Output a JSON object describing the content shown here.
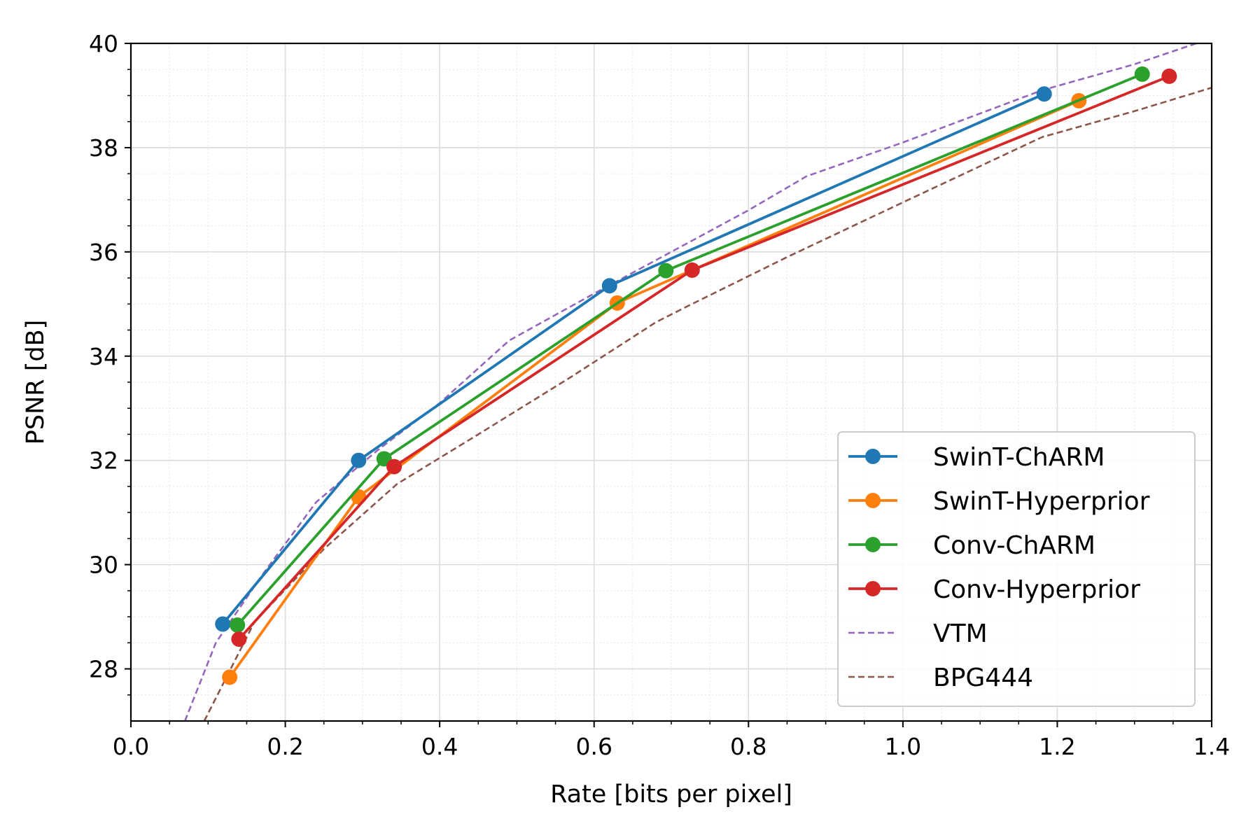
{
  "chart_data": {
    "type": "line",
    "title": "",
    "xlabel": "Rate [bits per pixel]",
    "ylabel": "PSNR [dB]",
    "xlim": [
      0.0,
      1.4
    ],
    "ylim": [
      27,
      40
    ],
    "xticks": [
      "0.0",
      "0.2",
      "0.4",
      "0.6",
      "0.8",
      "1.0",
      "1.2",
      "1.4"
    ],
    "yticks": [
      "28",
      "30",
      "32",
      "34",
      "36",
      "38",
      "40"
    ],
    "grid": true,
    "legend_position": "lower-right",
    "series": [
      {
        "name": "SwinT-ChARM",
        "color": "#1f77b4",
        "style": "solid",
        "marker": true,
        "points": [
          [
            0.119,
            28.86
          ],
          [
            0.295,
            32.0
          ],
          [
            0.62,
            35.35
          ],
          [
            1.183,
            39.03
          ]
        ]
      },
      {
        "name": "SwinT-Hyperprior",
        "color": "#ff7f0e",
        "style": "solid",
        "marker": true,
        "points": [
          [
            0.128,
            27.84
          ],
          [
            0.295,
            31.3
          ],
          [
            0.63,
            35.02
          ],
          [
            1.228,
            38.9
          ]
        ]
      },
      {
        "name": "Conv-ChARM",
        "color": "#2ca02c",
        "style": "solid",
        "marker": true,
        "points": [
          [
            0.138,
            28.84
          ],
          [
            0.328,
            32.03
          ],
          [
            0.693,
            35.64
          ],
          [
            1.31,
            39.41
          ]
        ]
      },
      {
        "name": "Conv-Hyperprior",
        "color": "#d62728",
        "style": "solid",
        "marker": true,
        "points": [
          [
            0.14,
            28.57
          ],
          [
            0.341,
            31.88
          ],
          [
            0.727,
            35.65
          ],
          [
            1.345,
            39.37
          ]
        ]
      },
      {
        "name": "VTM",
        "color": "#9467bd",
        "style": "dashed",
        "marker": false,
        "points": [
          [
            0.07,
            27.0
          ],
          [
            0.11,
            28.5
          ],
          [
            0.17,
            29.8
          ],
          [
            0.24,
            31.2
          ],
          [
            0.32,
            32.2
          ],
          [
            0.4,
            33.1
          ],
          [
            0.49,
            34.3
          ],
          [
            0.6,
            35.2
          ],
          [
            0.7,
            36.0
          ],
          [
            0.8,
            36.8
          ],
          [
            0.875,
            37.45
          ],
          [
            1.0,
            38.1
          ],
          [
            1.18,
            39.1
          ],
          [
            1.3,
            39.6
          ],
          [
            1.4,
            40.1
          ]
        ]
      },
      {
        "name": "BPG444",
        "color": "#8c564b",
        "style": "dashed",
        "marker": false,
        "points": [
          [
            0.095,
            27.0
          ],
          [
            0.16,
            28.9
          ],
          [
            0.25,
            30.3
          ],
          [
            0.345,
            31.55
          ],
          [
            0.45,
            32.5
          ],
          [
            0.57,
            33.6
          ],
          [
            0.68,
            34.65
          ],
          [
            0.72,
            34.95
          ],
          [
            0.85,
            35.9
          ],
          [
            1.0,
            36.95
          ],
          [
            1.18,
            38.2
          ],
          [
            1.3,
            38.7
          ],
          [
            1.4,
            39.15
          ]
        ]
      }
    ]
  }
}
